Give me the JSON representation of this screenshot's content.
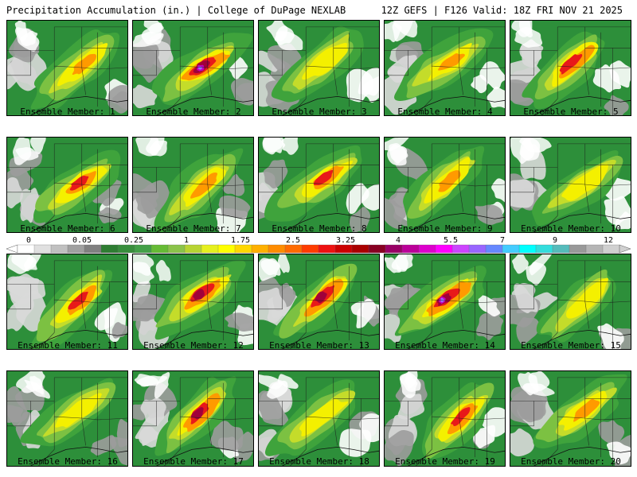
{
  "header": {
    "left": "Precipitation Accumulation (in.) | College of DuPage NEXLAB",
    "right": "12Z GEFS | F126 Valid: 18Z FRI NOV 21 2025"
  },
  "panel_label_prefix": "Ensemble Member:",
  "members": [
    {
      "number": "1",
      "hot": 0.35
    },
    {
      "number": "2",
      "hot": 0.95
    },
    {
      "number": "3",
      "hot": 0.3
    },
    {
      "number": "4",
      "hot": 0.35
    },
    {
      "number": "5",
      "hot": 0.75
    },
    {
      "number": "6",
      "hot": 0.55
    },
    {
      "number": "7",
      "hot": 0.5
    },
    {
      "number": "8",
      "hot": 0.55
    },
    {
      "number": "9",
      "hot": 0.45
    },
    {
      "number": "10",
      "hot": 0.3
    },
    {
      "number": "11",
      "hot": 0.6
    },
    {
      "number": "12",
      "hot": 0.8
    },
    {
      "number": "13",
      "hot": 0.85
    },
    {
      "number": "14",
      "hot": 0.95
    },
    {
      "number": "15",
      "hot": 0.25
    },
    {
      "number": "16",
      "hot": 0.25
    },
    {
      "number": "17",
      "hot": 0.8
    },
    {
      "number": "18",
      "hot": 0.3
    },
    {
      "number": "19",
      "hot": 0.6
    },
    {
      "number": "20",
      "hot": 0.45
    }
  ],
  "colorbar": {
    "labels": [
      "0",
      "0.05",
      "0.25",
      "1",
      "1.75",
      "2.5",
      "3.25",
      "4",
      "5.5",
      "7",
      "9",
      "12"
    ],
    "colors": [
      "#ffffff",
      "#e0e0e0",
      "#c0c0c0",
      "#a0a0a0",
      "#808080",
      "#2e7d32",
      "#388e3c",
      "#43a047",
      "#66bb35",
      "#8bc34a",
      "#b8d432",
      "#e6f01e",
      "#ffff00",
      "#ffd700",
      "#ffb000",
      "#ff8c00",
      "#ff6a00",
      "#ff3c00",
      "#ee1111",
      "#cc0000",
      "#aa0000",
      "#880022",
      "#990066",
      "#bb0099",
      "#dd00cc",
      "#ff00ff",
      "#cc44ff",
      "#9966ff",
      "#6688ff",
      "#44ccff",
      "#00ffff",
      "#33dddd",
      "#55bbbb",
      "#999999",
      "#b5b5b5",
      "#d0d0d0"
    ]
  },
  "colors": {
    "green_dark": "#2d8f3a",
    "green": "#3fa33c",
    "green_light": "#7cc142",
    "yellow_green": "#c4dc2a",
    "yellow": "#f4f000",
    "orange": "#ff9a00",
    "red": "#e8191a",
    "dark_red": "#a0003a",
    "magenta": "#c000c0",
    "purple": "#9a70ff",
    "gray": "#9c9c9c",
    "light_gray": "#d9d9d9",
    "white": "#ffffff",
    "border": "#000000"
  }
}
